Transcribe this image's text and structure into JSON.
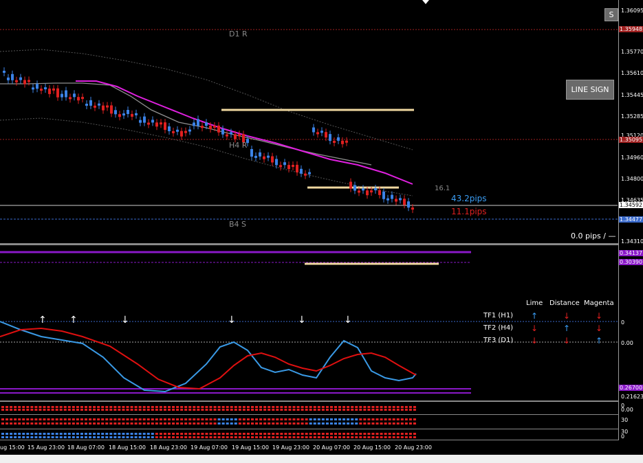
{
  "colors": {
    "background": "#000000",
    "bull": "#3b82e6",
    "bear": "#e02020",
    "magenta": "#e020e0",
    "sand": "#f0d8a0",
    "level_red": "#a02020",
    "purple": "#8a18c8",
    "cyan_line": "#3a9ae6",
    "osc_red": "#e01010"
  },
  "chart": {
    "price_axis": [
      "1.36095",
      "1.35948",
      "1.35770",
      "1.35610",
      "1.35445",
      "1.35285",
      "1.35120",
      "1.35095",
      "1.34960",
      "1.34800",
      "1.34635",
      "1.34592",
      "1.34477",
      "1.34310"
    ],
    "levels": {
      "d1r_label": "D1 R",
      "h4r_label": "H4 R",
      "b4s_label": "B4 S",
      "value_161": "16.1",
      "pips_blue": "43.2pips",
      "pips_red": "11.1pips",
      "pips_status": "0.0 pips / —"
    },
    "buttons": {
      "line_sign": "LINE SIGN",
      "top_s": "S"
    },
    "sub_axis": [
      "0.34137",
      "0.30390"
    ],
    "osc_axis": [
      "0",
      "0.00",
      "0.26700",
      "0.21623"
    ],
    "bar_axis": [
      "0",
      "0.00",
      "30",
      "30",
      "0"
    ]
  },
  "tf_table": {
    "headers": [
      "Lime",
      "Distance",
      "Magenta"
    ],
    "rows": [
      {
        "label": "TF1 (H1)",
        "lime": "↑",
        "distance": "↓",
        "magenta": "↓"
      },
      {
        "label": "TF2 (H4)",
        "lime": "↓",
        "distance": "↑",
        "magenta": "↓"
      },
      {
        "label": "TF3 (D1)",
        "lime": "↓",
        "distance": "↓",
        "magenta": "↑"
      }
    ]
  },
  "time_axis": [
    "ug 15:00",
    "15 Aug 23:00",
    "18 Aug 07:00",
    "18 Aug 15:00",
    "18 Aug 23:00",
    "19 Aug 07:00",
    "19 Aug 15:00",
    "19 Aug 23:00",
    "20 Aug 07:00",
    "20 Aug 15:00",
    "20 Aug 23:00"
  ],
  "signal_arrows": [
    "↑",
    "↑",
    "↓",
    "↓",
    "↓",
    "↓"
  ]
}
